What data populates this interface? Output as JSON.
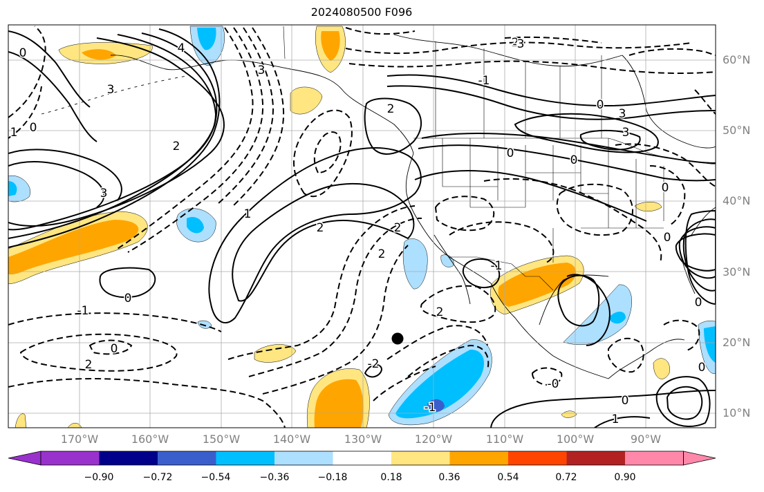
{
  "title": "2024080500 F096",
  "map": {
    "lat_labels": [
      "60°N",
      "50°N",
      "40°N",
      "30°N",
      "20°N",
      "10°N"
    ],
    "lon_labels": [
      "170°W",
      "160°W",
      "150°W",
      "140°W",
      "130°W",
      "120°W",
      "110°W",
      "100°W",
      "90°W"
    ],
    "marker_symbol": "black-dot",
    "contour_labels": [
      "0",
      "3",
      "4",
      "3",
      "0",
      "2",
      "2",
      "0",
      "2",
      "3",
      "0",
      "1",
      "2",
      "2",
      "2",
      "-1",
      "-1",
      "2",
      "0",
      "0",
      "-2",
      "-1",
      "0",
      "2",
      "0",
      "0",
      "1",
      "-3",
      "3",
      "0",
      "3",
      "0",
      "1",
      "-0",
      "0",
      "-1"
    ]
  },
  "colorbar": {
    "tick_labels": [
      "−0.90",
      "−0.72",
      "−0.54",
      "−0.36",
      "−0.18",
      "0.18",
      "0.36",
      "0.54",
      "0.72",
      "0.90"
    ],
    "colors": [
      "#9932CC",
      "#00008B",
      "#3A5FCD",
      "#00BFFF",
      "#ADDFFF",
      "#FFFFFF",
      "#FFE680",
      "#FFA500",
      "#FF4500",
      "#B22222",
      "#FF88AA"
    ]
  }
}
